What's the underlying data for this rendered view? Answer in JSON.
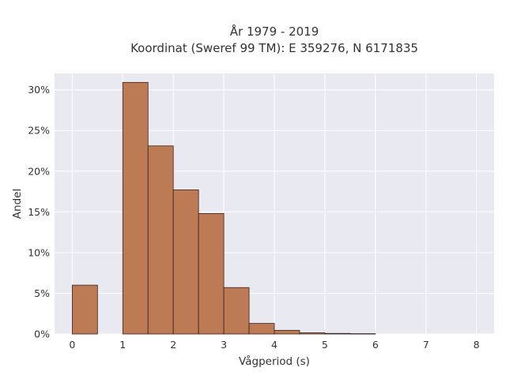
{
  "chart_data": {
    "type": "bar",
    "title": "År 1979 - 2019",
    "subtitle": "Koordinat (Sweref 99 TM): E 359276, N 6171835",
    "xlabel": "Vågperiod (s)",
    "ylabel": "Andel",
    "xlim": [
      -0.35,
      8.35
    ],
    "ylim": [
      0,
      32
    ],
    "x_ticks": [
      0,
      1,
      2,
      3,
      4,
      5,
      6,
      7,
      8
    ],
    "y_ticks": [
      {
        "value": 0,
        "label": "0%"
      },
      {
        "value": 5,
        "label": "5%"
      },
      {
        "value": 10,
        "label": "10%"
      },
      {
        "value": 15,
        "label": "15%"
      },
      {
        "value": 20,
        "label": "20%"
      },
      {
        "value": 25,
        "label": "25%"
      },
      {
        "value": 30,
        "label": "30%"
      }
    ],
    "bin_width": 0.5,
    "bins": [
      {
        "start": 0.0,
        "value": 6.0
      },
      {
        "start": 1.0,
        "value": 30.9
      },
      {
        "start": 1.5,
        "value": 23.1
      },
      {
        "start": 2.0,
        "value": 17.7
      },
      {
        "start": 2.5,
        "value": 14.8
      },
      {
        "start": 3.0,
        "value": 5.7
      },
      {
        "start": 3.5,
        "value": 1.3
      },
      {
        "start": 4.0,
        "value": 0.45
      },
      {
        "start": 4.5,
        "value": 0.15
      },
      {
        "start": 5.0,
        "value": 0.07
      },
      {
        "start": 5.5,
        "value": 0.04
      }
    ],
    "grid": true,
    "colors": {
      "bar_fill": "#bc7a55",
      "bar_edge": "#3a2418",
      "plot_background": "#e9e9f2",
      "grid": "#ffffff"
    }
  }
}
